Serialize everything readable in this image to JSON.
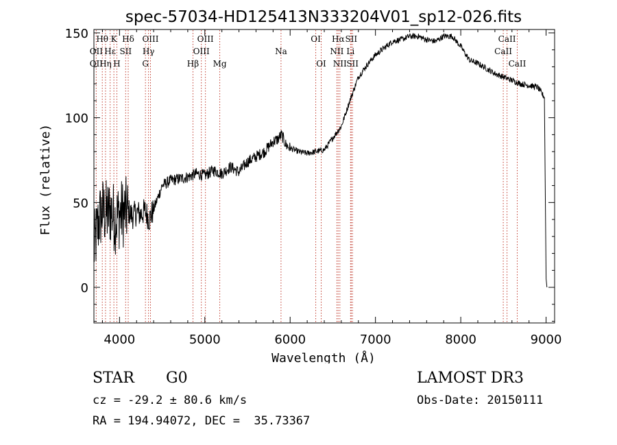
{
  "chart_data": {
    "type": "line",
    "title": "spec-57034-HD125413N333204V01_sp12-026.fits",
    "xlabel": "Wavelength (Å)",
    "ylabel": "Flux (relative)",
    "xlim": [
      3700,
      9100
    ],
    "ylim": [
      -21,
      152
    ],
    "xticks": [
      4000,
      5000,
      6000,
      7000,
      8000,
      9000
    ],
    "yticks": [
      0,
      50,
      100,
      150
    ],
    "grid": false,
    "series": [
      {
        "name": "spectrum",
        "x": [
          3700,
          3760,
          3800,
          3850,
          3900,
          3950,
          4000,
          4050,
          4100,
          4150,
          4200,
          4250,
          4300,
          4350,
          4400,
          4500,
          4600,
          4700,
          4800,
          4900,
          5000,
          5100,
          5200,
          5300,
          5400,
          5500,
          5600,
          5700,
          5800,
          5850,
          5900,
          5950,
          6000,
          6100,
          6200,
          6300,
          6400,
          6500,
          6600,
          6700,
          6800,
          6900,
          7000,
          7100,
          7200,
          7300,
          7400,
          7500,
          7600,
          7700,
          7800,
          7900,
          8000,
          8100,
          8200,
          8300,
          8400,
          8500,
          8600,
          8700,
          8800,
          8900,
          8980,
          9000,
          9010
        ],
        "y": [
          22,
          40,
          45,
          43,
          45,
          40,
          43,
          44,
          45,
          42,
          44,
          43,
          45,
          40,
          46,
          60,
          63,
          64,
          65,
          67,
          66,
          69,
          67,
          71,
          68,
          74,
          77,
          80,
          86,
          87,
          90,
          84,
          82,
          80,
          79,
          80,
          81,
          88,
          95,
          110,
          124,
          131,
          137,
          141,
          145,
          146,
          148,
          148,
          146,
          145,
          148,
          148,
          142,
          134,
          132,
          129,
          126,
          124,
          122,
          120,
          119,
          118,
          112,
          5,
          0
        ]
      }
    ],
    "line_labels": [
      {
        "label": "Hθ",
        "x": 3798,
        "row": 0,
        "lines": [
          3798
        ]
      },
      {
        "label": "OII",
        "x": 3727,
        "row": 1,
        "lines": [
          3727
        ]
      },
      {
        "label": "OII",
        "x": 3727,
        "row": 2,
        "lines": []
      },
      {
        "label": "Hη",
        "x": 3836,
        "row": 2,
        "lines": [
          3836
        ]
      },
      {
        "label": "K",
        "x": 3934,
        "row": 0,
        "lines": [
          3934
        ]
      },
      {
        "label": "H",
        "x": 3969,
        "row": 2,
        "lines": [
          3969
        ]
      },
      {
        "label": "Hε",
        "x": 3890,
        "row": 1,
        "lines": [
          3890
        ]
      },
      {
        "label": "SII",
        "x": 4072,
        "row": 1,
        "lines": [
          4072
        ]
      },
      {
        "label": "Hδ",
        "x": 4102,
        "row": 0,
        "lines": [
          4102
        ]
      },
      {
        "label": "OIII",
        "x": 4363,
        "row": 0,
        "lines": [
          4363
        ]
      },
      {
        "label": "Hγ",
        "x": 4340,
        "row": 1,
        "lines": [
          4340
        ]
      },
      {
        "label": "G",
        "x": 4304,
        "row": 2,
        "lines": [
          4304
        ]
      },
      {
        "label": "Hβ",
        "x": 4861,
        "row": 2,
        "lines": [
          4861
        ]
      },
      {
        "label": "OIII",
        "x": 5007,
        "row": 0,
        "lines": [
          5007
        ]
      },
      {
        "label": "OIII",
        "x": 4959,
        "row": 1,
        "lines": [
          4959
        ]
      },
      {
        "label": "Mg",
        "x": 5175,
        "row": 2,
        "lines": [
          5175
        ]
      },
      {
        "label": "Na",
        "x": 5893,
        "row": 1,
        "lines": [
          5893
        ]
      },
      {
        "label": "OI",
        "x": 6300,
        "row": 0,
        "lines": [
          6300
        ]
      },
      {
        "label": "OI",
        "x": 6364,
        "row": 2,
        "lines": [
          6364
        ]
      },
      {
        "label": "Hα",
        "x": 6563,
        "row": 0,
        "lines": [
          6563
        ]
      },
      {
        "label": "NII",
        "x": 6548,
        "row": 1,
        "lines": [
          6548
        ]
      },
      {
        "label": "NII",
        "x": 6583,
        "row": 2,
        "lines": [
          6583
        ]
      },
      {
        "label": "SII",
        "x": 6716,
        "row": 0,
        "lines": [
          6716
        ]
      },
      {
        "label": "Li",
        "x": 6708,
        "row": 1,
        "lines": [
          6708
        ]
      },
      {
        "label": "SII",
        "x": 6731,
        "row": 2,
        "lines": [
          6731
        ]
      },
      {
        "label": "CaII",
        "x": 8542,
        "row": 0,
        "lines": [
          8542
        ]
      },
      {
        "label": "CaII",
        "x": 8498,
        "row": 1,
        "lines": [
          8498
        ]
      },
      {
        "label": "CaII",
        "x": 8662,
        "row": 2,
        "lines": [
          8662
        ]
      }
    ]
  },
  "info": {
    "class": "STAR",
    "subclass": "G0",
    "survey": "LAMOST DR3",
    "redshift": "cz = -29.2 ± 80.6 km/s",
    "obs_date": "Obs-Date: 20150111",
    "coords": "RA = 194.94072, DEC =  35.73367"
  }
}
